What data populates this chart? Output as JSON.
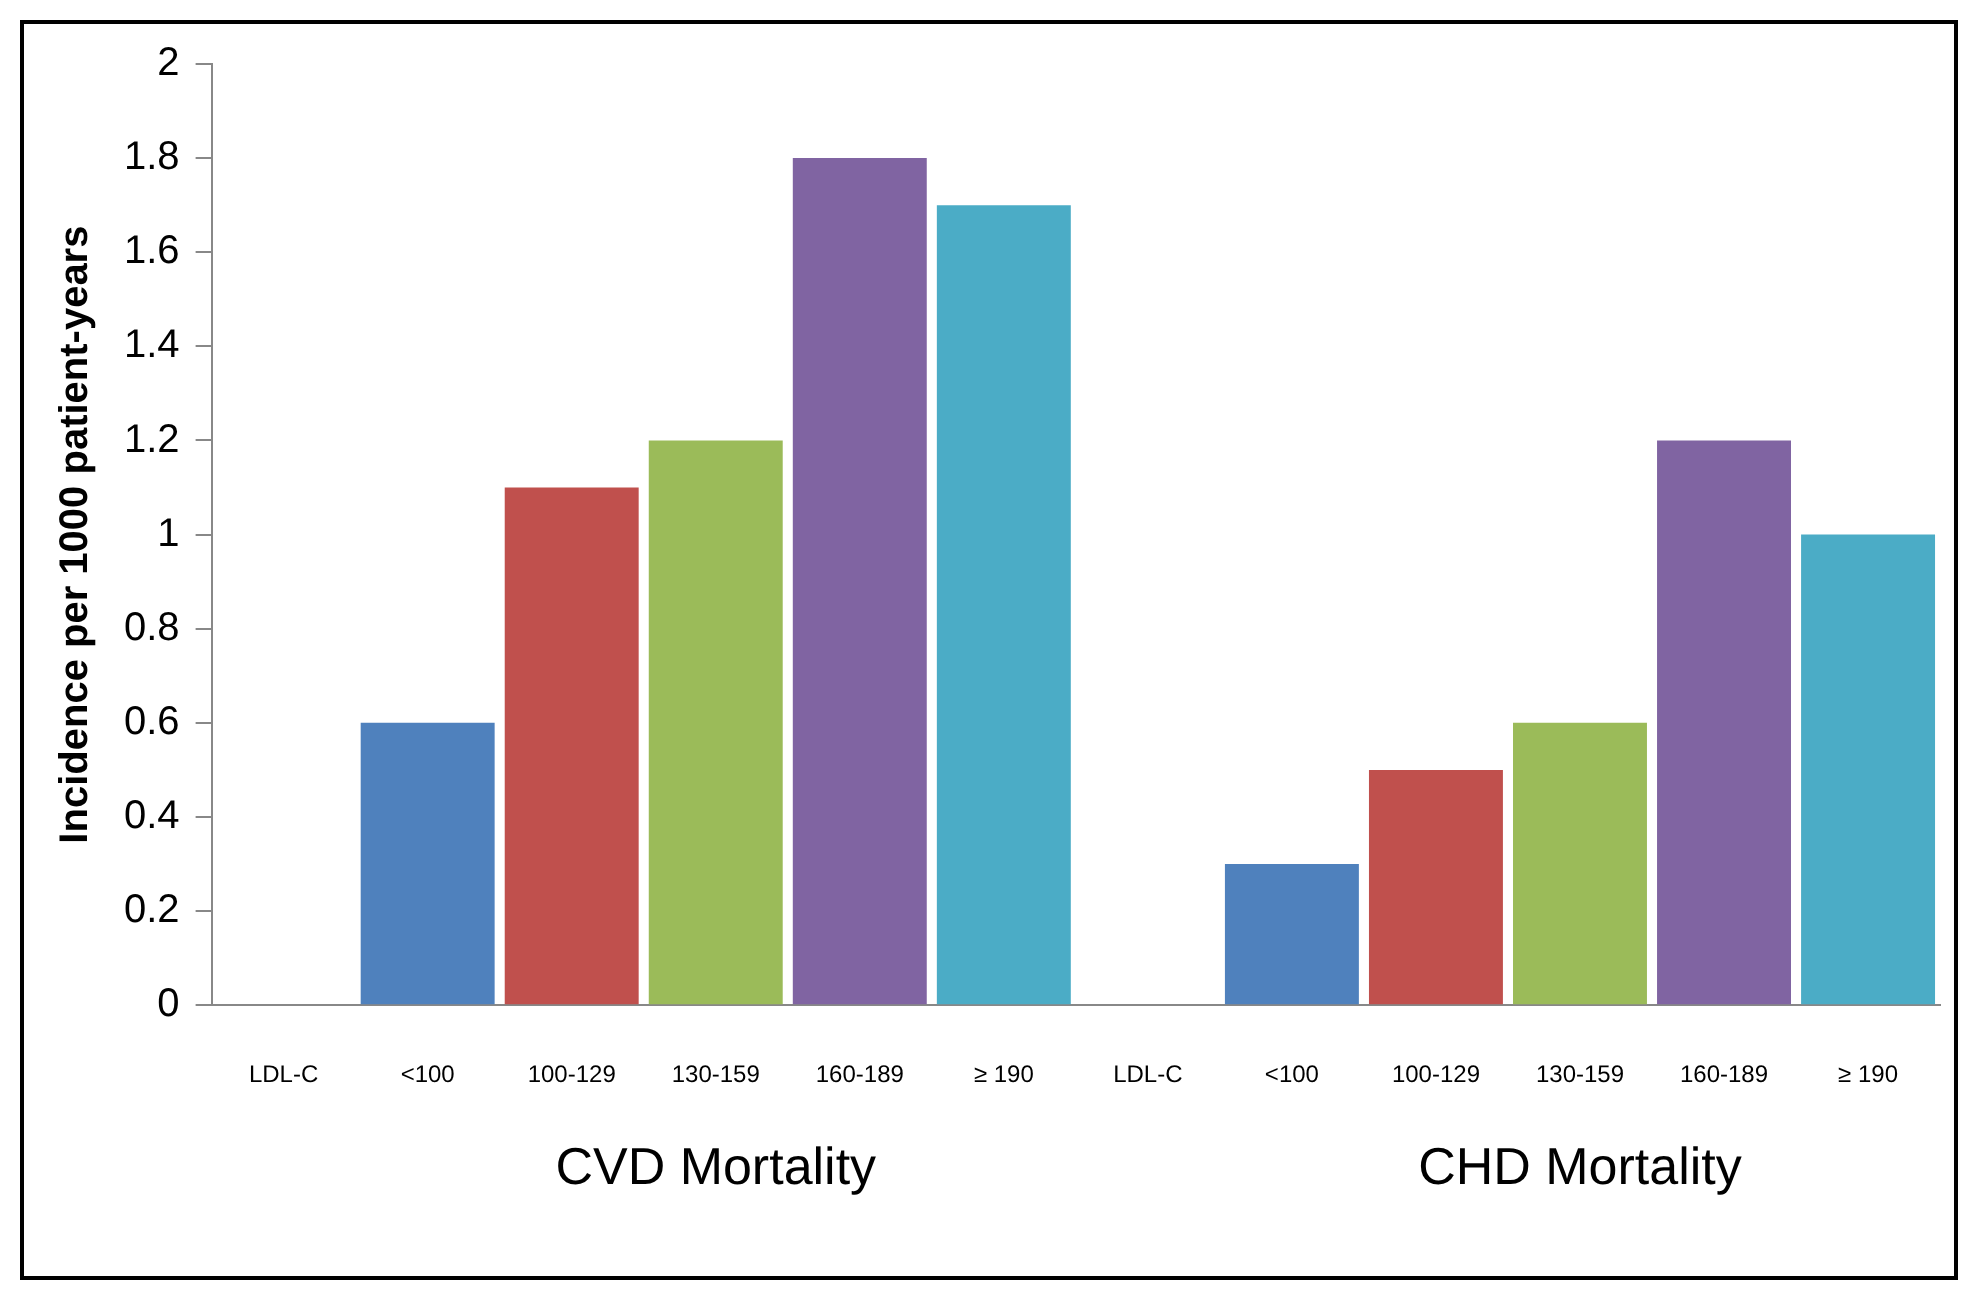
{
  "chart_data": {
    "type": "bar",
    "ylabel": "Incidence per 1000 patient-years",
    "categories": [
      "LDL-C",
      "<100",
      "100-129",
      "130-159",
      "160-189",
      "≥ 190",
      "LDL-C",
      "<100",
      "100-129",
      "130-159",
      "160-189",
      "≥ 190"
    ],
    "values": [
      null,
      0.6,
      1.1,
      1.2,
      1.8,
      1.7,
      null,
      0.3,
      0.5,
      0.6,
      1.2,
      1.0
    ],
    "colors": [
      null,
      "#4f81bd",
      "#c0504d",
      "#9bbb59",
      "#8064a2",
      "#4bacc6",
      null,
      "#4f81bd",
      "#c0504d",
      "#9bbb59",
      "#8064a2",
      "#4bacc6"
    ],
    "ylim": [
      0,
      2
    ],
    "yticks": [
      0,
      0.2,
      0.4,
      0.6,
      0.8,
      1,
      1.2,
      1.4,
      1.6,
      1.8,
      2
    ],
    "grid": false,
    "legend": false,
    "annotations": [
      "CVD Mortality",
      "CHD Mortality"
    ]
  }
}
